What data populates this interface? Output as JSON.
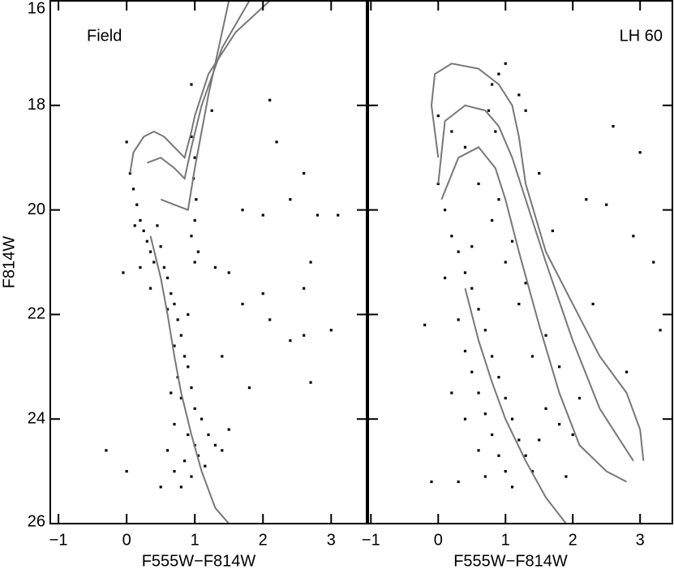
{
  "chart_data": [
    {
      "type": "scatter",
      "label": "Field",
      "xlabel": "F555W−F814W",
      "ylabel": "F814W",
      "xlim": [
        -1.12,
        3.52
      ],
      "ylim": [
        26,
        16
      ],
      "xticks": [
        {
          "value": -1,
          "label": "−1"
        },
        0,
        1,
        2,
        3
      ],
      "yticks": [
        16,
        18,
        20,
        22,
        24,
        26
      ],
      "show_ytick_labels": true,
      "point_color": "#000000",
      "line_color": "#777777",
      "points": {
        "x": [
          0.05,
          0.1,
          0.15,
          0.2,
          0.25,
          0.3,
          0.35,
          0.4,
          0.12,
          0.5,
          0.55,
          0.45,
          0.6,
          0.65,
          0.7,
          0.75,
          0.8,
          0.7,
          0.85,
          0.9,
          0.75,
          0.95,
          0.8,
          1.0,
          1.1,
          0.7,
          0.9,
          1.2,
          1.3,
          0.6,
          0.85,
          1.05,
          1.4,
          0.7,
          0.95,
          1.15,
          0.5,
          0.8,
          1.5,
          1.0,
          0.65,
          0.9,
          0.6,
          1.0,
          0.2,
          0.35,
          0.95,
          1.0,
          0.98,
          1.02,
          1.0,
          0.95,
          1.05,
          0.0,
          -0.05,
          2.0,
          2.1,
          2.2,
          2.4,
          2.6,
          2.8,
          3.1,
          2.7,
          2.6,
          2.0,
          1.7,
          2.1,
          2.6,
          3.0,
          2.7,
          1.8,
          1.5,
          1.4,
          -0.3,
          0.0,
          1.7,
          1.3,
          2.4,
          1.25,
          0.95
        ],
        "y": [
          19.3,
          19.6,
          19.9,
          20.2,
          20.4,
          20.6,
          20.8,
          21.0,
          20.3,
          20.7,
          21.1,
          20.3,
          21.3,
          21.6,
          21.8,
          22.1,
          22.4,
          22.6,
          22.8,
          23.0,
          23.2,
          23.4,
          23.6,
          23.8,
          24.0,
          24.1,
          24.3,
          24.3,
          24.5,
          24.6,
          24.8,
          24.7,
          24.6,
          25.0,
          25.1,
          24.9,
          25.3,
          25.3,
          24.2,
          24.5,
          23.5,
          22.0,
          21.9,
          21.0,
          21.1,
          21.5,
          18.6,
          19.0,
          19.4,
          19.8,
          20.2,
          20.5,
          20.8,
          18.7,
          21.2,
          20.1,
          17.9,
          18.7,
          19.8,
          19.3,
          20.1,
          20.1,
          21.0,
          21.5,
          21.6,
          21.8,
          22.1,
          22.4,
          22.3,
          23.3,
          23.4,
          21.2,
          22.8,
          24.6,
          25.0,
          20.0,
          21.1,
          22.5,
          18.1,
          17.6
        ]
      },
      "isochrones": [
        {
          "x": [
            0.35,
            0.5,
            0.6,
            0.7,
            0.8,
            0.95,
            1.1,
            1.3,
            1.5
          ],
          "y": [
            20.5,
            21.3,
            22.0,
            22.8,
            23.5,
            24.3,
            25.0,
            25.7,
            26.0
          ]
        },
        {
          "x": [
            0.05,
            0.1,
            0.25,
            0.4,
            0.55,
            0.7,
            0.85,
            0.95,
            1.0,
            1.2,
            1.6,
            2.1
          ],
          "y": [
            19.3,
            18.9,
            18.6,
            18.5,
            18.6,
            18.8,
            19.0,
            18.5,
            18.2,
            17.4,
            16.6,
            16.0
          ]
        },
        {
          "x": [
            0.3,
            0.5,
            0.7,
            0.85,
            0.95,
            1.1,
            1.4,
            1.8
          ],
          "y": [
            19.1,
            19.0,
            19.2,
            19.4,
            18.8,
            18.0,
            16.9,
            16.0
          ]
        },
        {
          "x": [
            0.5,
            0.7,
            0.9,
            1.0,
            1.2,
            1.5
          ],
          "y": [
            19.8,
            19.9,
            20.0,
            19.2,
            17.8,
            16.0
          ]
        }
      ]
    },
    {
      "type": "scatter",
      "label": "LH 60",
      "xlabel": "F555W−F814W",
      "xlim": [
        -1.04,
        3.48
      ],
      "ylim": [
        26,
        16
      ],
      "xticks": [
        {
          "value": -1,
          "label": "−1"
        },
        0,
        1,
        2,
        3
      ],
      "yticks": [
        16,
        18,
        20,
        22,
        24,
        26
      ],
      "show_ytick_labels": false,
      "point_color": "#000000",
      "line_color": "#777777",
      "points": {
        "x": [
          0.0,
          0.1,
          0.2,
          0.3,
          0.4,
          0.5,
          0.6,
          0.3,
          0.7,
          0.4,
          0.8,
          0.5,
          0.9,
          0.6,
          1.0,
          0.7,
          1.1,
          0.8,
          1.2,
          0.9,
          1.3,
          1.0,
          1.4,
          0.7,
          1.1,
          0.6,
          1.5,
          1.6,
          1.8,
          2.0,
          1.4,
          1.2,
          1.0,
          0.8,
          0.6,
          0.4,
          0.2,
          0.0,
          0.5,
          0.9,
          1.1,
          1.3,
          1.6,
          1.8,
          2.1,
          0.75,
          0.85,
          0.8,
          1.0,
          0.9,
          0.1,
          0.2,
          0.4,
          0.3,
          -0.2,
          2.2,
          2.5,
          3.0,
          2.6,
          3.2,
          2.8,
          2.3,
          1.7,
          1.5,
          1.3,
          1.2,
          1.9,
          -0.1,
          3.3,
          2.9
        ],
        "y": [
          19.5,
          20.0,
          20.5,
          20.8,
          21.2,
          21.5,
          21.9,
          22.1,
          22.3,
          22.7,
          22.8,
          23.1,
          23.2,
          23.5,
          23.6,
          23.9,
          24.0,
          24.3,
          24.4,
          24.7,
          24.7,
          25.0,
          25.0,
          25.1,
          25.3,
          24.6,
          24.4,
          23.8,
          24.1,
          24.3,
          22.8,
          21.8,
          21.0,
          20.2,
          19.5,
          18.8,
          18.5,
          18.2,
          20.7,
          19.8,
          20.6,
          21.4,
          22.4,
          23.0,
          23.6,
          18.1,
          18.5,
          17.6,
          17.2,
          17.4,
          21.3,
          23.5,
          24.0,
          25.2,
          22.2,
          19.8,
          19.9,
          18.9,
          18.4,
          21.0,
          23.1,
          21.8,
          20.4,
          19.3,
          18.1,
          17.8,
          25.1,
          25.2,
          22.3,
          20.5
        ]
      },
      "isochrones": [
        {
          "x": [
            0.0,
            -0.1,
            -0.05,
            0.2,
            0.6,
            0.9,
            1.1,
            1.2,
            1.3,
            1.6,
            2.0,
            2.4,
            2.8,
            3.0,
            3.05
          ],
          "y": [
            19.0,
            18.0,
            17.4,
            17.2,
            17.3,
            17.6,
            18.0,
            18.6,
            19.5,
            20.8,
            21.8,
            22.8,
            23.5,
            24.2,
            24.8
          ]
        },
        {
          "x": [
            0.0,
            0.1,
            0.4,
            0.7,
            0.9,
            1.1,
            1.3,
            1.6,
            2.0,
            2.4,
            2.7,
            2.9
          ],
          "y": [
            19.5,
            18.3,
            18.0,
            18.1,
            18.4,
            19.0,
            19.8,
            21.0,
            22.5,
            23.8,
            24.4,
            24.8
          ]
        },
        {
          "x": [
            0.05,
            0.3,
            0.6,
            0.85,
            1.0,
            1.2,
            1.5,
            1.8,
            2.1,
            2.5,
            2.8
          ],
          "y": [
            19.8,
            19.0,
            18.8,
            19.2,
            19.8,
            20.8,
            22.2,
            23.5,
            24.5,
            25.0,
            25.2
          ]
        },
        {
          "x": [
            0.4,
            0.6,
            0.8,
            1.0,
            1.3,
            1.6,
            1.9
          ],
          "y": [
            21.5,
            22.5,
            23.3,
            24.0,
            24.8,
            25.5,
            26.0
          ]
        }
      ]
    }
  ]
}
